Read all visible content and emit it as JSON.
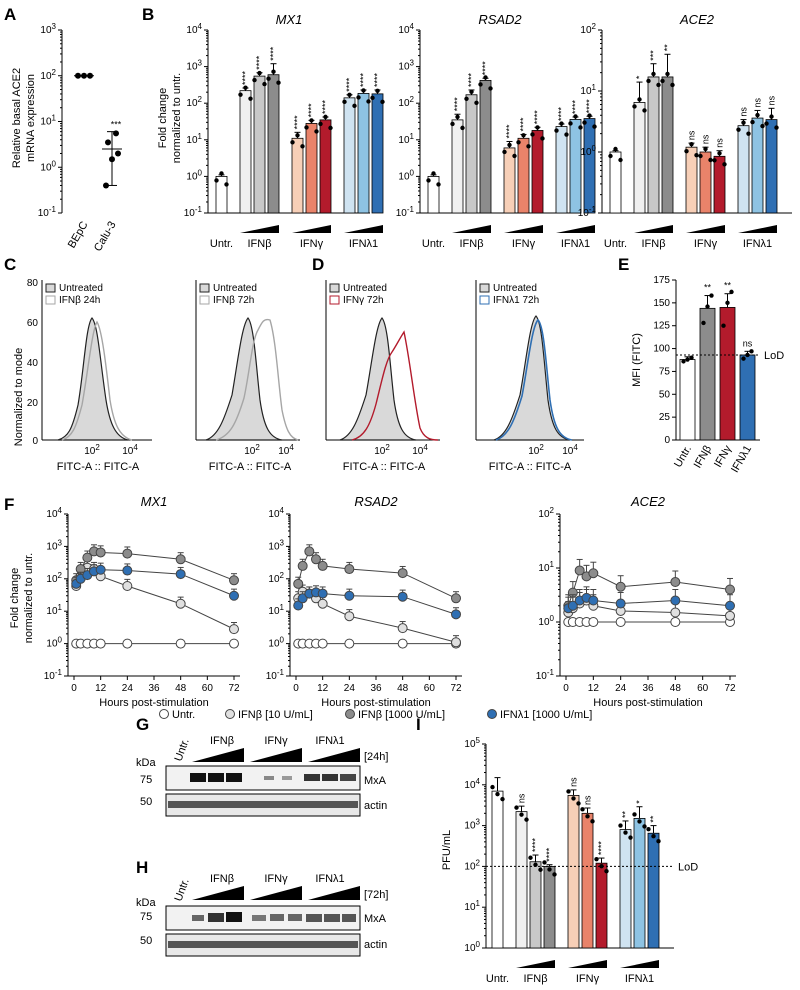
{
  "figure": {
    "panels": {
      "A": "A",
      "B": "B",
      "C": "C",
      "D": "D",
      "E": "E",
      "F": "F",
      "G": "G",
      "H": "H",
      "I": "I"
    },
    "common": {
      "fold_change_label": [
        "Fold change",
        "normalized to untr."
      ],
      "xcats": [
        "Untr.",
        "IFNβ",
        "IFNγ",
        "IFNλ1"
      ],
      "fitc_label": "FITC-A :: FITC-A",
      "norm_mode": "Normalized to mode",
      "hours_label": "Hours post-stimulation",
      "lod": "LoD",
      "kda": "kDa",
      "pow10": "10"
    },
    "legends": {
      "C1": [
        "Untreated",
        "IFNβ 24h"
      ],
      "C2": [
        "Untreated",
        "IFNβ 72h"
      ],
      "D1": [
        "Untreated",
        "IFNγ 72h"
      ],
      "D2": [
        "Untreated",
        "IFNλ1 72h"
      ]
    },
    "F_legend": [
      "Untr.",
      "IFNβ [10 U/mL]",
      "IFNβ [1000 U/mL]",
      "IFNλ1 [1000 U/mL]"
    ],
    "blots": {
      "G": {
        "time": "[24h]",
        "band1": "MxA",
        "band2": "actin",
        "marker1": "75",
        "marker2": "50"
      },
      "H": {
        "time": "[72h]",
        "band1": "MxA",
        "band2": "actin",
        "marker1": "75",
        "marker2": "50"
      }
    },
    "colors": {
      "ifnb": [
        "#f0f0f0",
        "#c8c8c8",
        "#8c8c8c"
      ],
      "ifng": [
        "#f7cfb7",
        "#e9836a",
        "#b31b2c"
      ],
      "ifnl": [
        "#cfe3f1",
        "#8ec3e3",
        "#2f6fb3"
      ],
      "open": "#ffffff"
    }
  },
  "chart_data": [
    {
      "id": "A",
      "type": "scatter",
      "ylabel": [
        "Relative basal ACE2",
        "mRNA expression"
      ],
      "ylim_exp": [
        -1,
        3
      ],
      "categories": [
        "BEpC",
        "Calu-3"
      ],
      "points": [
        [
          100,
          100,
          100
        ],
        [
          0.4,
          1.5,
          2,
          3.5,
          5.5
        ]
      ],
      "means": [
        100,
        2.5
      ],
      "sd": [
        [
          100,
          100
        ],
        [
          0.4,
          6
        ]
      ],
      "stars": [
        "",
        "***"
      ]
    },
    {
      "id": "B1",
      "type": "bar",
      "title": "MX1",
      "ylim_exp": [
        -1,
        4
      ],
      "groups": [
        {
          "values": [
            1
          ],
          "sd": [
            1.1
          ],
          "stars": [
            ""
          ]
        },
        {
          "values": [
            220,
            550,
            600
          ],
          "sd": [
            260,
            680,
            1200
          ],
          "stars": [
            "****",
            "****",
            "****"
          ]
        },
        {
          "values": [
            11,
            28,
            35
          ],
          "sd": [
            16,
            34,
            42
          ],
          "stars": [
            "****",
            "****",
            "****"
          ]
        },
        {
          "values": [
            140,
            185,
            180
          ],
          "sd": [
            170,
            230,
            230
          ],
          "stars": [
            "****",
            "****",
            "****"
          ]
        }
      ]
    },
    {
      "id": "B2",
      "type": "bar",
      "title": "RSAD2",
      "ylim_exp": [
        -1,
        4
      ],
      "groups": [
        {
          "values": [
            1
          ],
          "sd": [
            1.1
          ],
          "stars": [
            ""
          ]
        },
        {
          "values": [
            35,
            170,
            420
          ],
          "sd": [
            50,
            230,
            480
          ],
          "stars": [
            "****",
            "****",
            "****"
          ]
        },
        {
          "values": [
            6,
            11,
            18
          ],
          "sd": [
            9,
            14,
            22
          ],
          "stars": [
            "****",
            "****",
            "****"
          ]
        },
        {
          "values": [
            23,
            36,
            38
          ],
          "sd": [
            27,
            42,
            44
          ],
          "stars": [
            "****",
            "****",
            "****"
          ]
        }
      ]
    },
    {
      "id": "B3",
      "type": "bar",
      "title": "ACE2",
      "ylim_exp": [
        -1,
        2
      ],
      "groups": [
        {
          "values": [
            1
          ],
          "sd": [
            1.05
          ],
          "stars": [
            ""
          ]
        },
        {
          "values": [
            6.5,
            17,
            17
          ],
          "sd": [
            14,
            28,
            40
          ],
          "stars": [
            "*",
            "***",
            "**"
          ]
        },
        {
          "values": [
            1.2,
            1.0,
            0.85
          ],
          "sd": [
            1.4,
            1.2,
            1.05
          ],
          "stars": [
            "ns",
            "ns",
            "ns"
          ]
        },
        {
          "values": [
            2.7,
            3.6,
            3.4
          ],
          "sd": [
            3.4,
            4.8,
            5.2
          ],
          "stars": [
            "ns",
            "ns",
            "ns"
          ]
        }
      ]
    },
    {
      "id": "E",
      "type": "bar",
      "ylabel": "MFI (FITC)",
      "ylim": [
        0,
        175
      ],
      "yticks": [
        0,
        25,
        50,
        75,
        100,
        125,
        150,
        175
      ],
      "categories": [
        "Untr.",
        "IFNβ",
        "IFNγ",
        "IFNλ1"
      ],
      "values": [
        88,
        144,
        145,
        93
      ],
      "sd": [
        91,
        158,
        160,
        97
      ],
      "stars": [
        "",
        "**",
        "**",
        "ns"
      ],
      "lod": 93,
      "points": [
        [
          86,
          88,
          90
        ],
        [
          128,
          146,
          158
        ],
        [
          125,
          150,
          162
        ],
        [
          89,
          93,
          97
        ]
      ]
    },
    {
      "id": "F1",
      "type": "line",
      "title": "MX1",
      "ylim_exp": [
        -1,
        4
      ],
      "x": [
        1,
        3,
        6,
        9,
        12,
        24,
        48,
        72
      ],
      "xticks": [
        0,
        12,
        24,
        36,
        48,
        60,
        72
      ],
      "series": [
        {
          "name": "Untr.",
          "values": [
            1,
            1,
            1,
            1,
            1,
            1,
            1,
            1
          ]
        },
        {
          "name": "IFNβ [10 U/mL]",
          "values": [
            60,
            120,
            220,
            200,
            120,
            60,
            17,
            2.8
          ]
        },
        {
          "name": "IFNβ [1000 U/mL]",
          "values": [
            90,
            200,
            450,
            700,
            650,
            600,
            400,
            90
          ]
        },
        {
          "name": "IFNλ1 [1000 U/mL]",
          "values": [
            70,
            100,
            130,
            170,
            190,
            180,
            140,
            30
          ]
        }
      ]
    },
    {
      "id": "F2",
      "type": "line",
      "title": "RSAD2",
      "ylim_exp": [
        -1,
        4
      ],
      "x": [
        1,
        3,
        6,
        9,
        12,
        24,
        48,
        72
      ],
      "xticks": [
        0,
        12,
        24,
        36,
        48,
        60,
        72
      ],
      "series": [
        {
          "name": "Untr.",
          "values": [
            1,
            1,
            1,
            1,
            1,
            1,
            1,
            1
          ]
        },
        {
          "name": "IFNβ [10 U/mL]",
          "values": [
            25,
            40,
            35,
            25,
            17,
            7,
            3,
            1.1
          ]
        },
        {
          "name": "IFNβ [1000 U/mL]",
          "values": [
            70,
            250,
            700,
            400,
            250,
            200,
            150,
            25
          ]
        },
        {
          "name": "IFNλ1 [1000 U/mL]",
          "values": [
            15,
            25,
            35,
            38,
            35,
            30,
            28,
            8
          ]
        }
      ]
    },
    {
      "id": "F3",
      "type": "line",
      "title": "ACE2",
      "ylim_exp": [
        -1,
        2
      ],
      "x": [
        1,
        3,
        6,
        9,
        12,
        24,
        48,
        72
      ],
      "xticks": [
        0,
        12,
        24,
        36,
        48,
        60,
        72
      ],
      "series": [
        {
          "name": "Untr.",
          "values": [
            1,
            1,
            1,
            1,
            1,
            1,
            1,
            1
          ]
        },
        {
          "name": "IFNβ [10 U/mL]",
          "values": [
            1.5,
            1.8,
            2.2,
            2.5,
            2,
            1.6,
            1.5,
            1.3
          ]
        },
        {
          "name": "IFNβ [1000 U/mL]",
          "values": [
            2,
            3.5,
            9,
            7,
            8,
            4.5,
            5.5,
            4
          ]
        },
        {
          "name": "IFNλ1 [1000 U/mL]",
          "values": [
            1.8,
            2,
            2.5,
            2.8,
            2.5,
            2.2,
            2.5,
            2
          ]
        }
      ]
    },
    {
      "id": "I",
      "type": "bar",
      "ylabel": "PFU/mL",
      "ylim_exp": [
        0,
        5
      ],
      "lod": 100,
      "groups": [
        {
          "values": [
            7000
          ],
          "sd": [
            15000
          ],
          "stars": [
            ""
          ]
        },
        {
          "values": [
            2200,
            130,
            100
          ],
          "sd": [
            3000,
            190,
            110
          ],
          "stars": [
            "ns",
            "****",
            "****"
          ]
        },
        {
          "values": [
            5500,
            2000,
            120
          ],
          "sd": [
            7500,
            2700,
            160
          ],
          "stars": [
            "ns",
            "ns",
            "****"
          ]
        },
        {
          "values": [
            800,
            1500,
            650
          ],
          "sd": [
            1300,
            2900,
            1000
          ],
          "stars": [
            "**",
            "*",
            "**"
          ]
        }
      ]
    }
  ]
}
